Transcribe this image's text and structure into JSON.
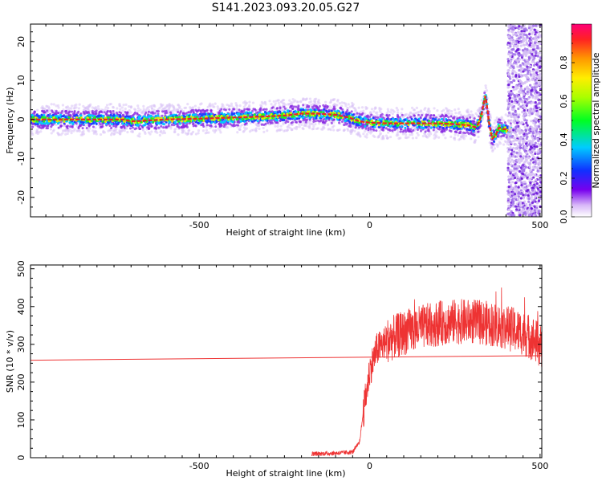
{
  "title": "S141.2023.093.20.05.G27",
  "chart_data": [
    {
      "type": "heatmap",
      "title": "S141.2023.093.20.05.G27",
      "xlabel": "Height of straight line (km)",
      "ylabel": "Frequency (Hz)",
      "xlim": [
        -995,
        505
      ],
      "ylim": [
        -25,
        24.5
      ],
      "x_ticks": [
        "-500",
        "0",
        "500"
      ],
      "x_tick_values": [
        -500,
        0,
        500
      ],
      "y_ticks": [
        "-20",
        "-10",
        "0",
        "10",
        "20"
      ],
      "y_tick_values": [
        -20,
        -10,
        0,
        10,
        20
      ],
      "colorbar": {
        "label": "Normalized spectral amplitude",
        "ticks": [
          "0.0",
          "0.2",
          "0.4",
          "0.6",
          "0.8"
        ],
        "tick_values": [
          0.0,
          0.2,
          0.4,
          0.6,
          0.8
        ],
        "range": [
          0,
          1
        ],
        "colormap": "rainbow"
      },
      "ridge": {
        "x": [
          -995,
          -900,
          -800,
          -720,
          -700,
          -600,
          -500,
          -400,
          -300,
          -250,
          -200,
          -150,
          -100,
          -60,
          -30,
          0,
          50,
          100,
          150,
          200,
          250,
          290,
          310,
          320,
          330,
          335,
          340,
          345,
          350,
          360,
          370,
          380,
          390,
          400,
          410
        ],
        "y": [
          0,
          0,
          0,
          0,
          -0.5,
          0,
          0.2,
          0.5,
          0.8,
          1.0,
          1.5,
          1.5,
          1.2,
          0.5,
          -0.5,
          -0.8,
          -1.0,
          -1.0,
          -1.0,
          -1.0,
          -1.2,
          -1.5,
          -2.0,
          -1.0,
          2.0,
          4.5,
          6.0,
          3.0,
          -1.0,
          -5.0,
          -4.0,
          -2.0,
          -2.5,
          -2.5,
          -3.0
        ]
      },
      "noise_region_start_km": 415
    },
    {
      "type": "line",
      "xlabel": "Height of straight line (km)",
      "ylabel": "SNR (10 * v/v)",
      "xlim": [
        -995,
        505
      ],
      "ylim": [
        0,
        510
      ],
      "x_ticks": [
        "-500",
        "0",
        "500"
      ],
      "x_tick_values": [
        -500,
        0,
        500
      ],
      "y_ticks": [
        "0",
        "100",
        "200",
        "300",
        "400",
        "500"
      ],
      "y_tick_values": [
        0,
        100,
        200,
        300,
        400,
        500
      ],
      "color": "#ee3333",
      "reference_line": {
        "x": [
          -995,
          505
        ],
        "y": [
          258,
          270
        ]
      },
      "envelope": {
        "x": [
          -170,
          -100,
          -50,
          -30,
          -20,
          -10,
          0,
          20,
          50,
          100,
          150,
          200,
          250,
          300,
          350,
          400,
          450,
          480,
          505
        ],
        "y": [
          10,
          12,
          15,
          40,
          110,
          170,
          230,
          285,
          310,
          330,
          345,
          355,
          360,
          360,
          355,
          345,
          330,
          315,
          290
        ]
      }
    }
  ]
}
